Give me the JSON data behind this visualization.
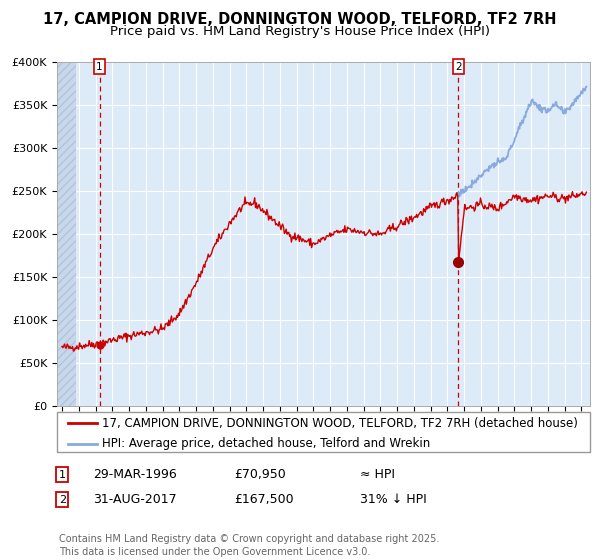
{
  "title_line1": "17, CAMPION DRIVE, DONNINGTON WOOD, TELFORD, TF2 7RH",
  "title_line2": "Price paid vs. HM Land Registry's House Price Index (HPI)",
  "ylim": [
    0,
    400000
  ],
  "xlim_start": 1993.7,
  "xlim_end": 2025.5,
  "yticks": [
    0,
    50000,
    100000,
    150000,
    200000,
    250000,
    300000,
    350000,
    400000
  ],
  "ytick_labels": [
    "£0",
    "£50K",
    "£100K",
    "£150K",
    "£200K",
    "£250K",
    "£300K",
    "£350K",
    "£400K"
  ],
  "plot_bg_color": "#ddeaf8",
  "hatch_bg_color": "#c8d8ea",
  "grid_color": "#c8d8ea",
  "red_line_color": "#cc0000",
  "blue_line_color": "#88aadd",
  "marker1_date": 1996.24,
  "marker1_value": 70950,
  "marker2_date": 2017.66,
  "marker2_value": 167500,
  "legend_label_red": "17, CAMPION DRIVE, DONNINGTON WOOD, TELFORD, TF2 7RH (detached house)",
  "legend_label_blue": "HPI: Average price, detached house, Telford and Wrekin",
  "annotation1_date": "29-MAR-1996",
  "annotation1_price": "£70,950",
  "annotation1_hpi": "≈ HPI",
  "annotation2_date": "31-AUG-2017",
  "annotation2_price": "£167,500",
  "annotation2_hpi": "31% ↓ HPI",
  "footer": "Contains HM Land Registry data © Crown copyright and database right 2025.\nThis data is licensed under the Open Government Licence v3.0.",
  "title_fontsize": 10.5,
  "subtitle_fontsize": 9.5,
  "tick_fontsize": 8,
  "legend_fontsize": 8.5,
  "annotation_fontsize": 9,
  "footer_fontsize": 7
}
